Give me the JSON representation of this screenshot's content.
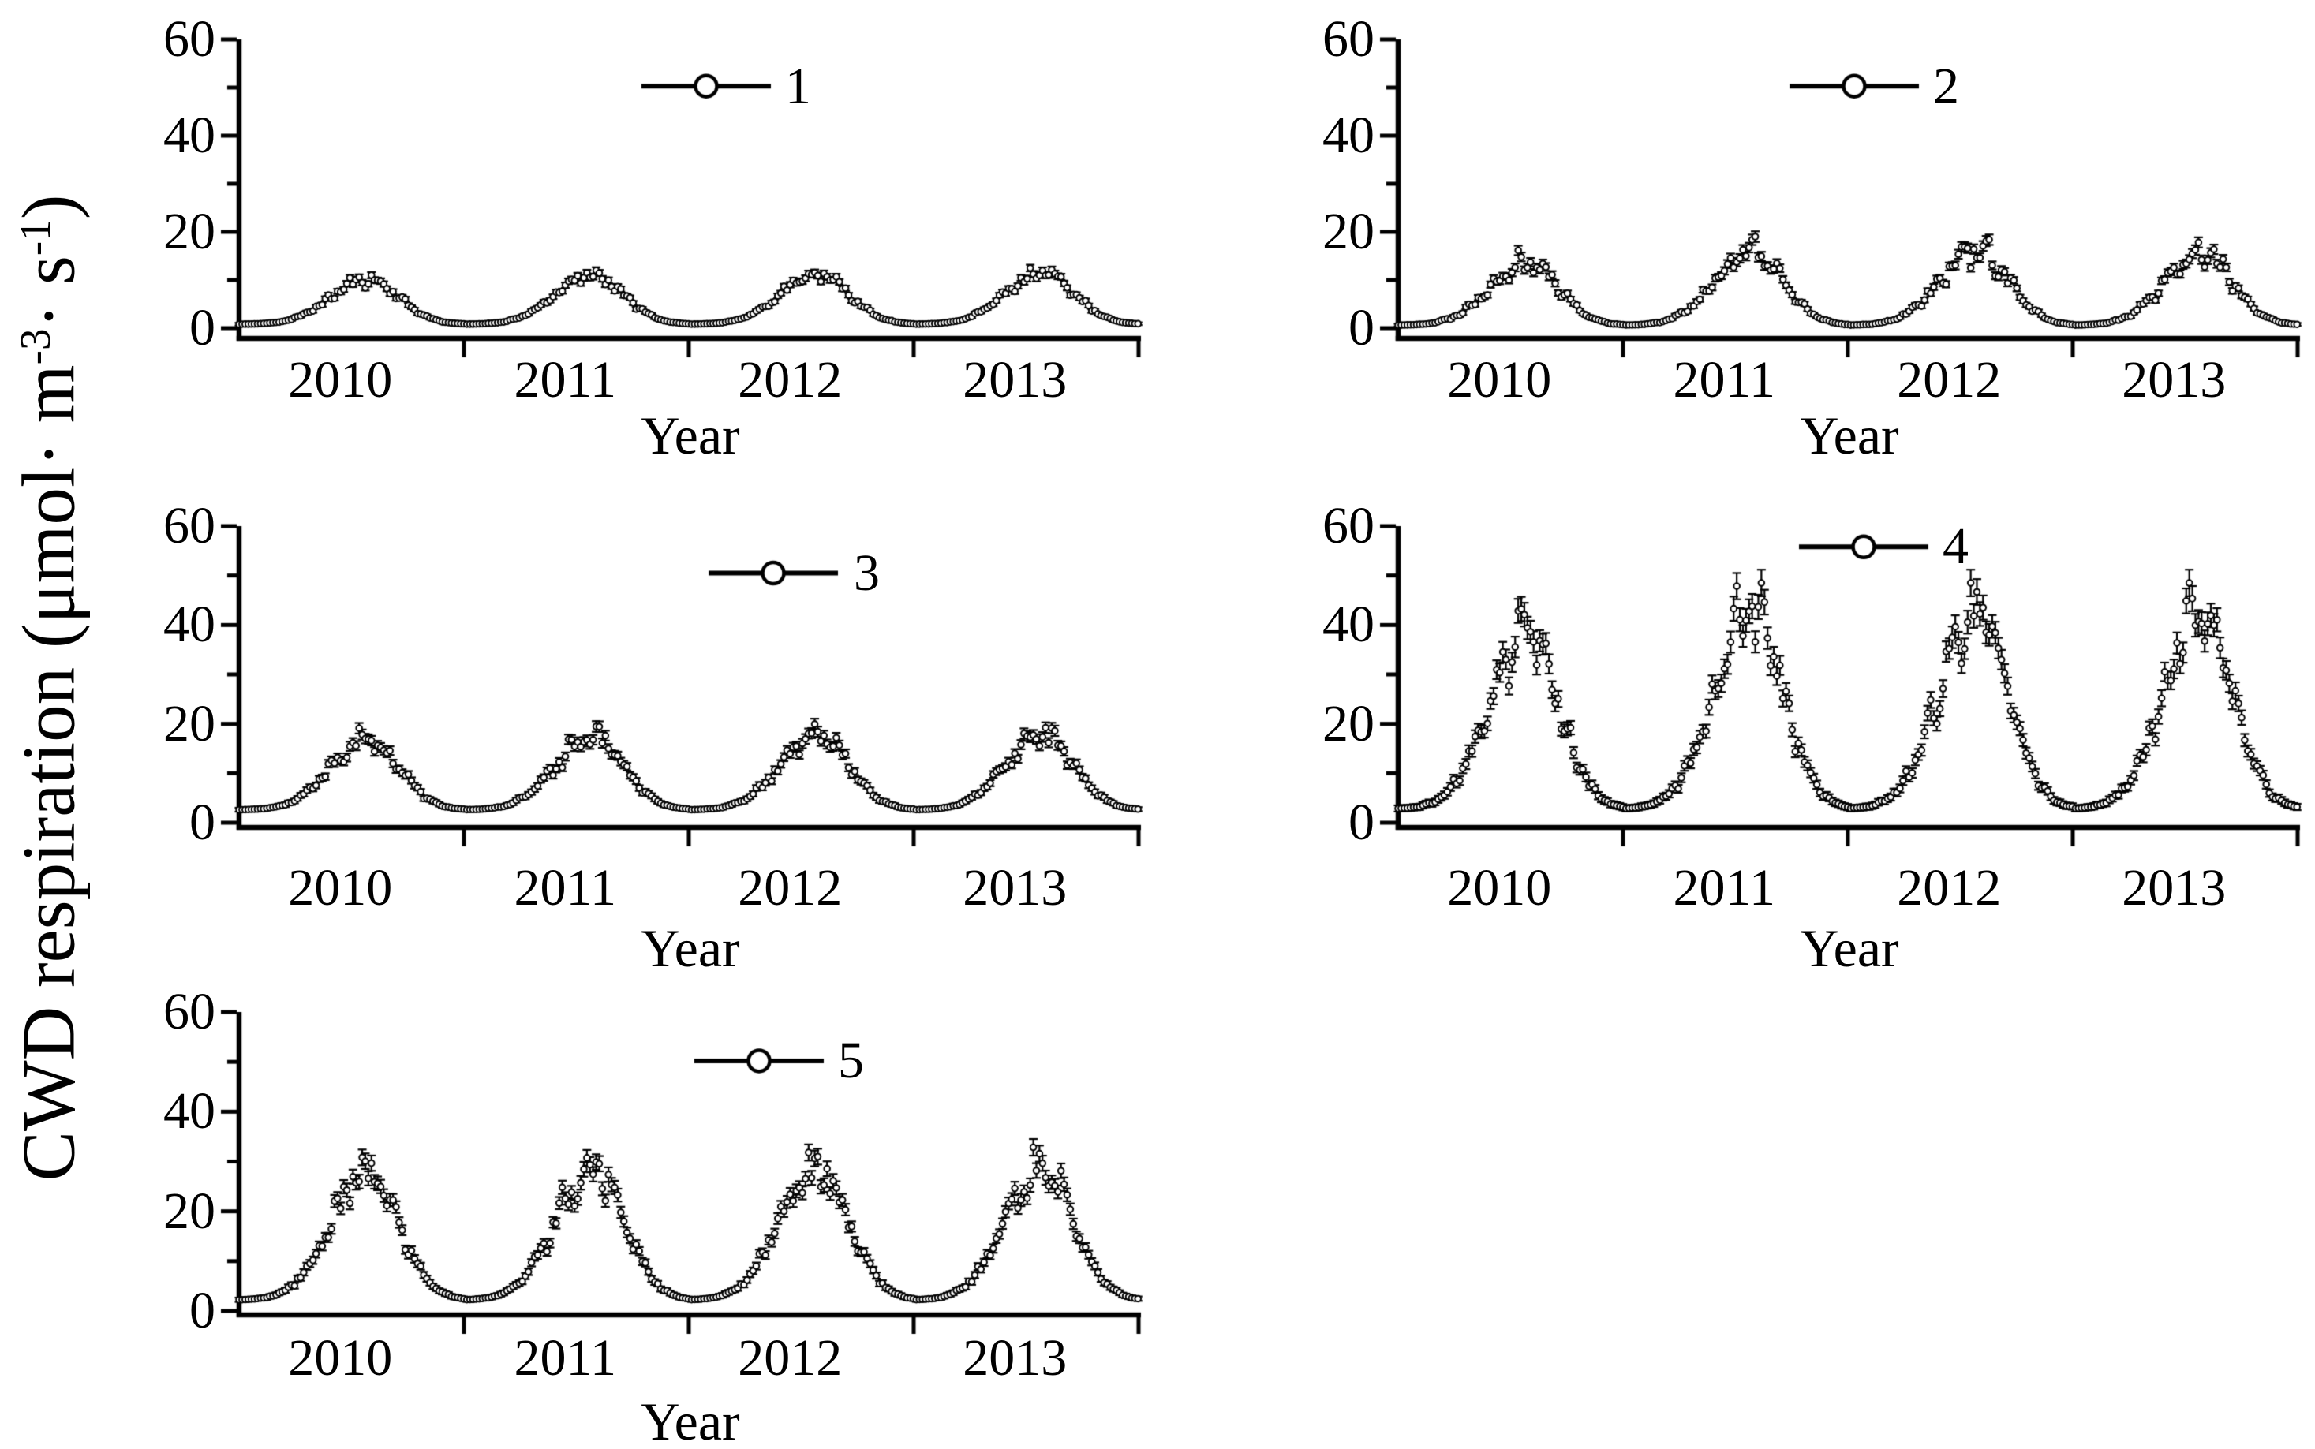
{
  "figure": {
    "x_axis_label": "Year",
    "y_axis_title": {
      "prefix": "CWD respiration (μmol· m",
      "sup1": "-3",
      "mid": "· s",
      "sup2": "-1",
      "suffix": ")"
    }
  },
  "chart_data": {
    "type": "scatter",
    "title": "",
    "xlabel": "Year",
    "ylabel": "CWD respiration (μmol·m⁻³·s⁻¹)",
    "ylim": [
      0,
      60
    ],
    "x_range_years": [
      2010.0,
      2014.0
    ],
    "x_tick_labels": [
      "2010",
      "2011",
      "2012",
      "2013"
    ],
    "y_tick_labels": [
      "0",
      "20",
      "40",
      "60"
    ],
    "y_major_ticks": [
      0,
      20,
      40,
      60
    ],
    "y_minor_ticks": [
      10,
      30,
      50
    ],
    "grid": false,
    "legend_position": "inside top-center",
    "marker": "open-circle with error bars",
    "color": "#000000",
    "seasonal_model": {
      "peak_phase": 0.57,
      "width_rise": 0.23,
      "width_fall": 0.2,
      "note": "Annual cycle: flat winter baseline, rise from ~Feb, peak ~Jul-Aug, decline to baseline by ~Dec"
    },
    "panels": [
      {
        "legend_label": "1",
        "baseline": 0.8,
        "annual_peaks": [
          10.1,
          11.0,
          11.2,
          11.6
        ],
        "peak_years": [
          2010,
          2011,
          2012,
          2013
        ],
        "noise": 0.11,
        "error_base": 0.25,
        "error_scale": 0.035,
        "seed": 11
      },
      {
        "legend_label": "2",
        "baseline": 0.6,
        "annual_peaks": [
          13.8,
          15.8,
          16.2,
          15.4
        ],
        "peak_years": [
          2010,
          2011,
          2012,
          2013
        ],
        "noise": 0.15,
        "error_base": 0.25,
        "error_scale": 0.045,
        "seed": 22
      },
      {
        "legend_label": "3",
        "baseline": 2.6,
        "annual_peaks": [
          16.6,
          17.4,
          17.8,
          17.6
        ],
        "peak_years": [
          2010,
          2011,
          2012,
          2013
        ],
        "noise": 0.13,
        "error_base": 0.3,
        "error_scale": 0.04,
        "seed": 33
      },
      {
        "legend_label": "4",
        "baseline": 2.8,
        "annual_peaks": [
          38.5,
          42.5,
          42.5,
          41.5
        ],
        "peak_years": [
          2010,
          2011,
          2012,
          2013
        ],
        "noise": 0.15,
        "error_base": 0.5,
        "error_scale": 0.045,
        "seed": 44
      },
      {
        "legend_label": "5",
        "baseline": 2.2,
        "annual_peaks": [
          27.5,
          28.5,
          29.0,
          28.5
        ],
        "peak_years": [
          2010,
          2011,
          2012,
          2013
        ],
        "noise": 0.13,
        "error_base": 0.35,
        "error_scale": 0.04,
        "seed": 55
      }
    ]
  }
}
